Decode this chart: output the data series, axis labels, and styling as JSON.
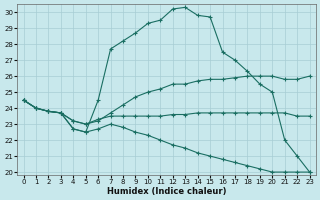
{
  "xlabel": "Humidex (Indice chaleur)",
  "bg_color": "#c8e8ec",
  "grid_color": "#a8cdd4",
  "line_color": "#1a6e62",
  "xlim": [
    -0.5,
    23.5
  ],
  "ylim": [
    19.8,
    30.5
  ],
  "yticks": [
    20,
    21,
    22,
    23,
    24,
    25,
    26,
    27,
    28,
    29,
    30
  ],
  "xticks": [
    0,
    1,
    2,
    3,
    4,
    5,
    6,
    7,
    8,
    9,
    10,
    11,
    12,
    13,
    14,
    15,
    16,
    17,
    18,
    19,
    20,
    21,
    22,
    23
  ],
  "curves": [
    {
      "x": [
        0,
        1,
        2,
        3,
        4,
        5,
        6,
        7,
        8,
        9,
        10,
        11,
        12,
        13,
        14,
        15,
        16,
        17,
        18,
        19,
        20,
        21,
        22,
        23
      ],
      "y": [
        24.5,
        24.0,
        23.8,
        23.7,
        22.7,
        22.5,
        24.5,
        27.7,
        28.2,
        28.7,
        29.3,
        29.5,
        30.2,
        30.3,
        29.8,
        29.7,
        27.5,
        27.0,
        26.3,
        25.5,
        25.0,
        22.0,
        21.0,
        20.0
      ]
    },
    {
      "x": [
        0,
        1,
        2,
        3,
        4,
        5,
        6,
        7,
        8,
        9,
        10,
        11,
        12,
        13,
        14,
        15,
        16,
        17,
        18,
        19,
        20,
        21,
        22,
        23
      ],
      "y": [
        24.5,
        24.0,
        23.8,
        23.7,
        23.2,
        23.0,
        23.2,
        23.7,
        24.2,
        24.7,
        25.0,
        25.2,
        25.5,
        25.5,
        25.7,
        25.8,
        25.8,
        25.9,
        26.0,
        26.0,
        26.0,
        25.8,
        25.8,
        26.0
      ]
    },
    {
      "x": [
        0,
        1,
        2,
        3,
        4,
        5,
        6,
        7,
        8,
        9,
        10,
        11,
        12,
        13,
        14,
        15,
        16,
        17,
        18,
        19,
        20,
        21,
        22,
        23
      ],
      "y": [
        24.5,
        24.0,
        23.8,
        23.7,
        23.2,
        23.0,
        23.3,
        23.5,
        23.5,
        23.5,
        23.5,
        23.5,
        23.6,
        23.6,
        23.7,
        23.7,
        23.7,
        23.7,
        23.7,
        23.7,
        23.7,
        23.7,
        23.5,
        23.5
      ]
    },
    {
      "x": [
        0,
        1,
        2,
        3,
        4,
        5,
        6,
        7,
        8,
        9,
        10,
        11,
        12,
        13,
        14,
        15,
        16,
        17,
        18,
        19,
        20,
        21,
        22,
        23
      ],
      "y": [
        24.5,
        24.0,
        23.8,
        23.7,
        22.7,
        22.5,
        22.7,
        23.0,
        22.8,
        22.5,
        22.3,
        22.0,
        21.7,
        21.5,
        21.2,
        21.0,
        20.8,
        20.6,
        20.4,
        20.2,
        20.0,
        20.0,
        20.0,
        20.0
      ]
    }
  ]
}
